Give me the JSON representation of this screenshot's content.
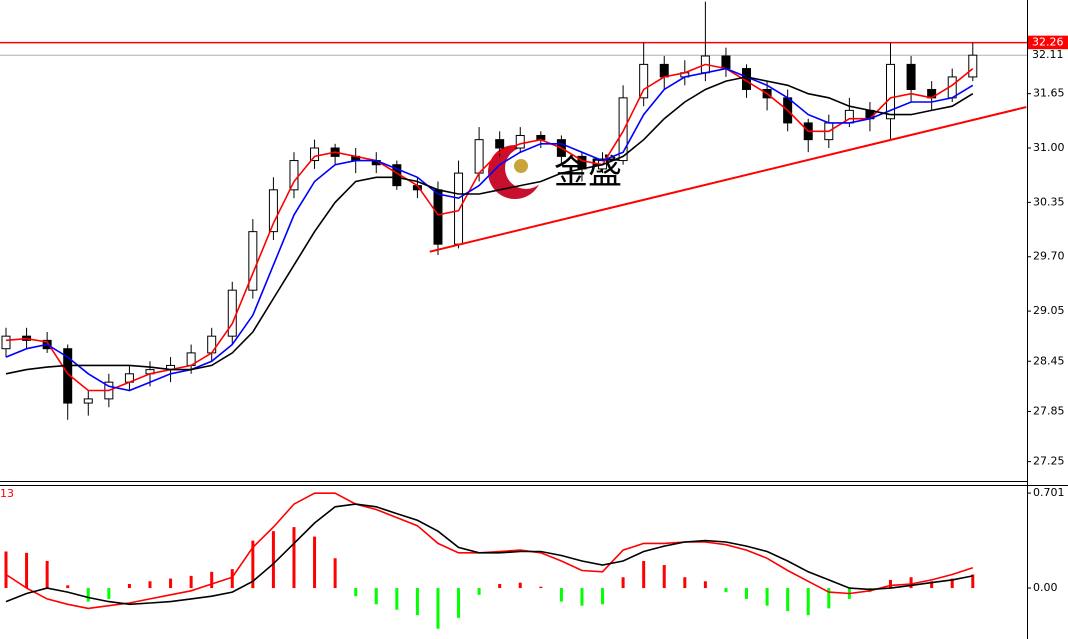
{
  "chart_data": [
    {
      "type": "candlestick",
      "watermark": "金盛",
      "open": [
        28.6,
        28.75,
        28.7,
        28.6,
        27.95,
        28.0,
        28.2,
        28.3,
        28.35,
        28.4,
        28.55,
        28.75,
        29.3,
        30.0,
        30.5,
        30.85,
        31.0,
        30.9,
        30.85,
        30.8,
        30.55,
        30.5,
        29.85,
        30.7,
        31.1,
        31.0,
        31.15,
        31.1,
        30.9,
        30.75,
        30.85,
        31.6,
        32.0,
        31.85,
        31.9,
        32.1,
        31.95,
        31.7,
        31.6,
        31.3,
        31.1,
        31.3,
        31.45,
        31.35,
        32.0,
        31.7,
        31.6,
        31.85
      ],
      "high": [
        28.85,
        28.85,
        28.8,
        28.65,
        28.1,
        28.3,
        28.4,
        28.45,
        28.5,
        28.65,
        28.85,
        29.4,
        30.15,
        30.65,
        30.95,
        31.1,
        31.05,
        31.0,
        30.95,
        30.85,
        30.65,
        30.6,
        30.85,
        31.25,
        31.2,
        31.25,
        31.2,
        31.15,
        30.95,
        30.95,
        31.75,
        32.26,
        32.1,
        32.05,
        32.75,
        32.2,
        32.0,
        31.8,
        31.7,
        31.35,
        31.4,
        31.6,
        31.55,
        32.26,
        32.1,
        31.8,
        31.95,
        32.26
      ],
      "low": [
        28.5,
        28.6,
        28.55,
        27.75,
        27.8,
        27.9,
        28.1,
        28.15,
        28.2,
        28.3,
        28.45,
        28.65,
        29.2,
        29.9,
        30.4,
        30.75,
        30.8,
        30.7,
        30.7,
        30.5,
        30.4,
        29.72,
        29.8,
        30.6,
        30.9,
        30.95,
        31.0,
        30.8,
        30.6,
        30.7,
        30.8,
        31.5,
        31.7,
        31.75,
        31.8,
        31.85,
        31.6,
        31.45,
        31.2,
        30.95,
        31.0,
        31.25,
        31.2,
        31.1,
        31.55,
        31.45,
        31.55,
        31.8
      ],
      "close": [
        28.75,
        28.7,
        28.6,
        27.95,
        28.0,
        28.2,
        28.3,
        28.35,
        28.4,
        28.55,
        28.75,
        29.3,
        30.0,
        30.5,
        30.85,
        31.0,
        30.9,
        30.85,
        30.8,
        30.55,
        30.5,
        29.85,
        30.7,
        31.1,
        31.0,
        31.15,
        31.1,
        30.9,
        30.75,
        30.85,
        31.6,
        32.0,
        31.85,
        31.9,
        32.1,
        31.95,
        31.7,
        31.6,
        31.3,
        31.1,
        31.3,
        31.45,
        31.35,
        32.0,
        31.7,
        31.6,
        31.85,
        32.11
      ],
      "series": [
        {
          "color": "#ff0000",
          "values": [
            28.7,
            28.72,
            28.68,
            28.3,
            28.1,
            28.1,
            28.2,
            28.3,
            28.35,
            28.4,
            28.55,
            28.9,
            29.5,
            30.1,
            30.6,
            30.9,
            30.95,
            30.9,
            30.85,
            30.7,
            30.55,
            30.2,
            30.25,
            30.7,
            30.95,
            31.05,
            31.1,
            31.0,
            30.85,
            30.8,
            31.2,
            31.7,
            31.85,
            31.9,
            32.0,
            31.95,
            31.8,
            31.65,
            31.45,
            31.2,
            31.2,
            31.35,
            31.35,
            31.6,
            31.65,
            31.6,
            31.75,
            31.95
          ]
        },
        {
          "color": "#0000ff",
          "values": [
            28.5,
            28.6,
            28.65,
            28.5,
            28.3,
            28.15,
            28.1,
            28.2,
            28.3,
            28.35,
            28.45,
            28.65,
            29.0,
            29.6,
            30.2,
            30.6,
            30.8,
            30.85,
            30.85,
            30.75,
            30.65,
            30.45,
            30.4,
            30.55,
            30.8,
            30.95,
            31.05,
            31.05,
            30.95,
            30.85,
            30.95,
            31.4,
            31.7,
            31.85,
            31.9,
            31.95,
            31.85,
            31.75,
            31.6,
            31.4,
            31.3,
            31.3,
            31.35,
            31.45,
            31.55,
            31.55,
            31.6,
            31.75
          ]
        },
        {
          "color": "#000000",
          "values": [
            28.3,
            28.35,
            28.38,
            28.4,
            28.4,
            28.4,
            28.4,
            28.38,
            28.35,
            28.35,
            28.4,
            28.55,
            28.8,
            29.2,
            29.6,
            30.0,
            30.35,
            30.6,
            30.65,
            30.65,
            30.6,
            30.5,
            30.45,
            30.45,
            30.5,
            30.55,
            30.6,
            30.7,
            30.75,
            30.8,
            30.9,
            31.1,
            31.35,
            31.55,
            31.7,
            31.8,
            31.85,
            31.8,
            31.75,
            31.65,
            31.6,
            31.5,
            31.45,
            31.4,
            31.4,
            31.45,
            31.5,
            31.65
          ]
        }
      ],
      "level": {
        "value": 32.26,
        "label": "32.26",
        "color": "#ff0000"
      },
      "current": {
        "value": 32.11,
        "label": "32.11"
      },
      "trendline": {
        "x": [
          20.6,
          49.6
        ],
        "y": [
          29.76,
          31.49
        ],
        "color": "#ff0000"
      },
      "ylim": [
        27.03,
        32.77
      ],
      "yticks": [
        31.65,
        {
          "value": 31,
          "label": "31.00"
        },
        30.35,
        {
          "value": 29.7,
          "label": "29.70"
        },
        29.05,
        28.45,
        27.85,
        27.25
      ]
    },
    {
      "type": "macd",
      "label": "13",
      "histogram": {
        "up_color": "#ff0000",
        "down_color": "#00ff00",
        "values": [
          0.27,
          0.26,
          0.2,
          0.02,
          -0.1,
          -0.08,
          0.03,
          0.05,
          0.07,
          0.09,
          0.12,
          0.14,
          0.35,
          0.42,
          0.45,
          0.38,
          0.22,
          -0.06,
          -0.12,
          -0.16,
          -0.2,
          -0.3,
          -0.22,
          -0.05,
          0.03,
          0.04,
          0.01,
          -0.1,
          -0.13,
          -0.12,
          0.08,
          0.2,
          0.17,
          0.08,
          0.05,
          -0.03,
          -0.08,
          -0.13,
          -0.17,
          -0.2,
          -0.15,
          -0.08,
          -0.03,
          0.06,
          0.08,
          0.05,
          0.07,
          0.1
        ]
      },
      "series": [
        {
          "color": "#ff0000",
          "values": [
            0.1,
            0.0,
            -0.08,
            -0.12,
            -0.15,
            -0.13,
            -0.11,
            -0.08,
            -0.05,
            -0.02,
            0.03,
            0.08,
            0.3,
            0.45,
            0.62,
            0.7,
            0.7,
            0.62,
            0.58,
            0.52,
            0.46,
            0.33,
            0.26,
            0.26,
            0.27,
            0.28,
            0.26,
            0.2,
            0.13,
            0.12,
            0.28,
            0.33,
            0.33,
            0.34,
            0.34,
            0.32,
            0.28,
            0.22,
            0.13,
            0.05,
            -0.03,
            -0.04,
            -0.02,
            0.02,
            0.03,
            0.06,
            0.1,
            0.15
          ]
        },
        {
          "color": "#000000",
          "values": [
            -0.1,
            -0.04,
            0.0,
            -0.03,
            -0.07,
            -0.1,
            -0.12,
            -0.11,
            -0.1,
            -0.08,
            -0.06,
            -0.03,
            0.05,
            0.18,
            0.33,
            0.48,
            0.6,
            0.62,
            0.6,
            0.55,
            0.5,
            0.42,
            0.3,
            0.26,
            0.26,
            0.27,
            0.27,
            0.24,
            0.2,
            0.17,
            0.2,
            0.27,
            0.31,
            0.34,
            0.35,
            0.34,
            0.31,
            0.27,
            0.2,
            0.12,
            0.06,
            0.0,
            -0.01,
            0.0,
            0.02,
            0.04,
            0.06,
            0.09
          ]
        }
      ],
      "ylim": [
        -0.376,
        0.746
      ],
      "yticks": [
        0.701,
        {
          "value": 0,
          "label": "0.00"
        }
      ]
    }
  ]
}
